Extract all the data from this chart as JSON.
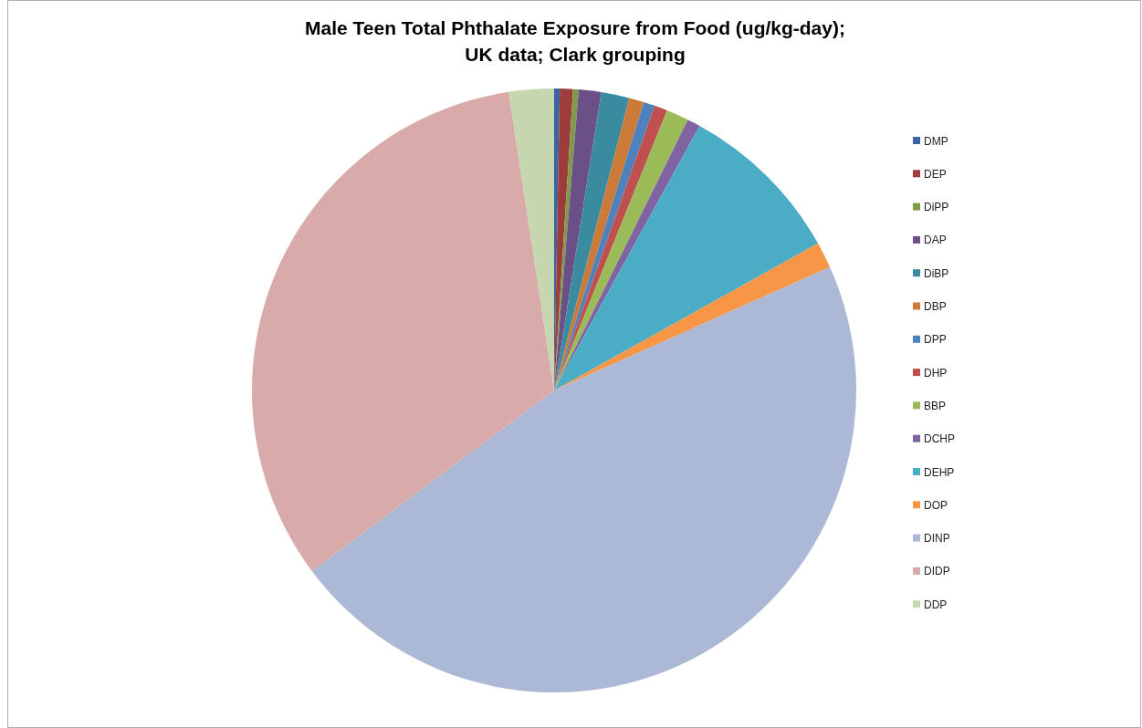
{
  "chart_data": {
    "type": "pie",
    "title": "Male Teen Total Phthalate Exposure from Food (ug/kg-day);\nUK data; Clark grouping",
    "categories": [
      "DMP",
      "DEP",
      "DiPP",
      "DAP",
      "DiBP",
      "DBP",
      "DPP",
      "DHP",
      "BBP",
      "DCHP",
      "DEHP",
      "DOP",
      "DINP",
      "DIDP",
      "DDP"
    ],
    "values": [
      0.3,
      0.7,
      0.3,
      1.2,
      1.5,
      0.8,
      0.6,
      0.7,
      1.2,
      0.7,
      8.9,
      1.4,
      46.5,
      32.8,
      2.4
    ],
    "colors": [
      "#3b64a0",
      "#9e3c3c",
      "#7f9b48",
      "#6b5088",
      "#3a8aa0",
      "#cc7a38",
      "#4f81bd",
      "#c0504d",
      "#9bbb59",
      "#8064a2",
      "#4bacc6",
      "#f79646",
      "#abb9d7",
      "#d9aaaa",
      "#c6d6ae"
    ],
    "legend": "right"
  }
}
